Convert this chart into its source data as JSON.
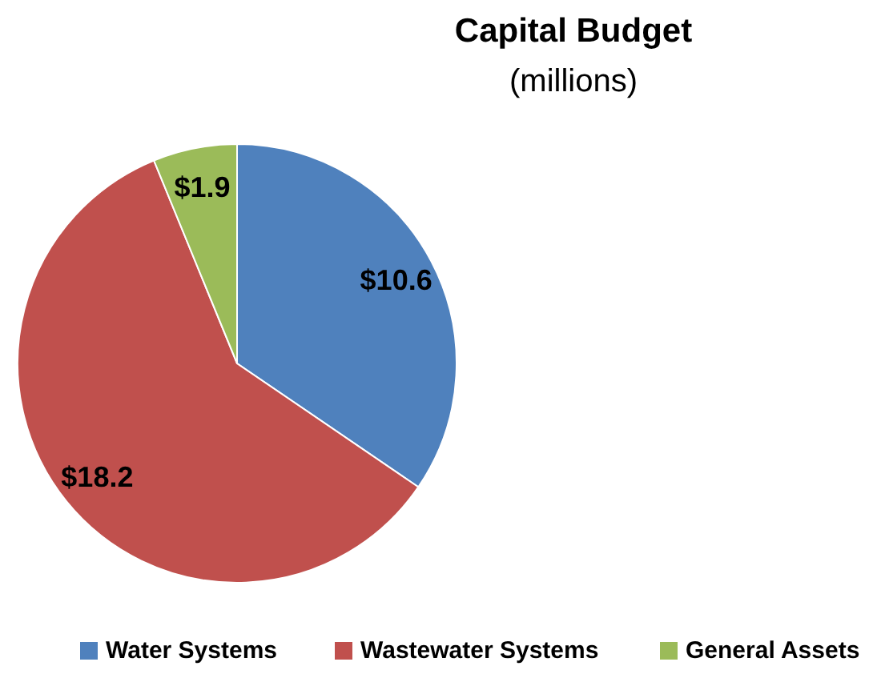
{
  "chart_data": {
    "type": "pie",
    "title": "Capital Budget",
    "subtitle": "(millions)",
    "categories": [
      "Water Systems",
      "Wastewater Systems",
      "General Assets"
    ],
    "values": [
      10.6,
      18.2,
      1.9
    ],
    "colors": [
      "#4f81bd",
      "#c0504d",
      "#9bbb59"
    ],
    "value_labels": [
      "$10.6",
      "$18.2",
      "$1.9"
    ],
    "legend": "bottom"
  }
}
